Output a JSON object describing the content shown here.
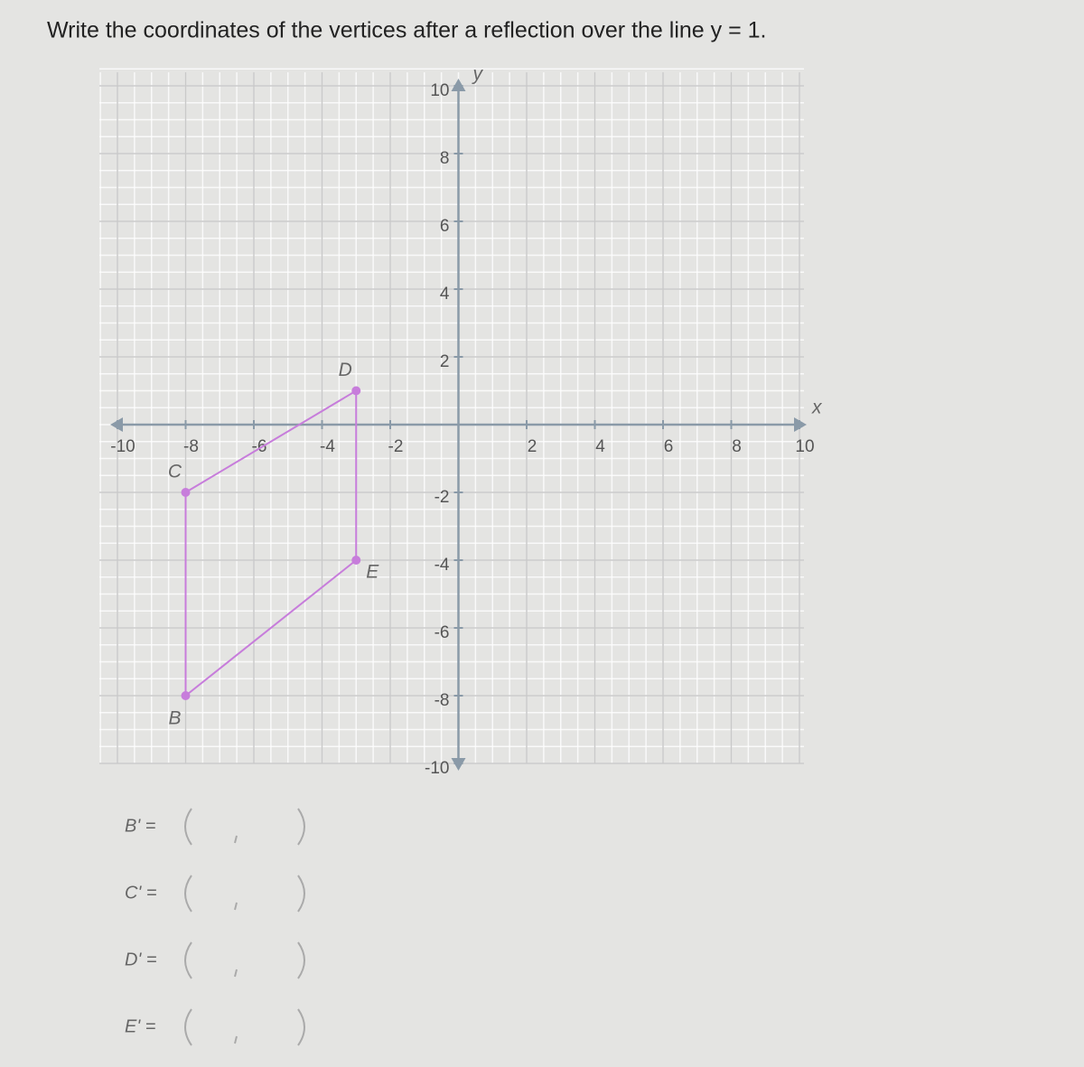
{
  "question": "Write the coordinates of the vertices after a reflection over the line y = 1.",
  "chart_data": {
    "type": "polygon",
    "x_label": "x",
    "y_label": "y",
    "x": [
      -8,
      -8,
      -3,
      -3
    ],
    "values": [
      -8,
      -2,
      1,
      -4
    ],
    "point_labels": [
      "B",
      "C",
      "D",
      "E"
    ],
    "color": "#c77ddb",
    "xlim": [
      -10,
      10
    ],
    "ylim": [
      -10,
      10
    ],
    "xticks": [
      -10,
      -8,
      -6,
      -4,
      -2,
      2,
      4,
      6,
      8,
      10
    ],
    "yticks": [
      -10,
      -8,
      -6,
      -4,
      -2,
      2,
      4,
      6,
      8,
      10
    ],
    "grid": true
  },
  "answers": [
    "B' =",
    "C' =",
    "D' =",
    "E' ="
  ]
}
